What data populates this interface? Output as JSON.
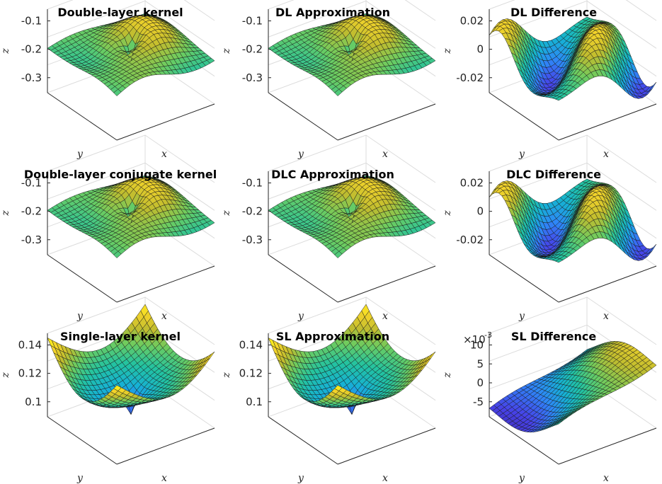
{
  "figure": {
    "colormap": [
      "#3e26a8",
      "#4742e8",
      "#2e87f7",
      "#16b1d4",
      "#23c3a0",
      "#6bcc61",
      "#bfbc2f",
      "#f5d42a",
      "#f9fb15"
    ],
    "edge_color": "#1a1a1a"
  },
  "chart_data": [
    {
      "type": "surface",
      "title": "Double-layer kernel",
      "xlabel": "x",
      "ylabel": "y",
      "zlabel": "z",
      "zticks": [
        "-0.1",
        "-0.2",
        "-0.3"
      ],
      "zlim": [
        -0.36,
        -0.04
      ],
      "shape": "double-layer"
    },
    {
      "type": "surface",
      "title": "DL Approximation",
      "xlabel": "x",
      "ylabel": "y",
      "zlabel": "z",
      "zticks": [
        "-0.1",
        "-0.2",
        "-0.3"
      ],
      "zlim": [
        -0.36,
        -0.04
      ],
      "shape": "double-layer"
    },
    {
      "type": "surface",
      "title": "DL Difference",
      "xlabel": "x",
      "ylabel": "y",
      "zlabel": "z",
      "zticks": [
        "0.02",
        "0",
        "-0.02"
      ],
      "zlim": [
        -0.025,
        0.025
      ],
      "shape": "difference"
    },
    {
      "type": "surface",
      "title": "Double-layer conjugate kernel",
      "xlabel": "x",
      "ylabel": "y",
      "zlabel": "z",
      "zticks": [
        "-0.1",
        "-0.2",
        "-0.3"
      ],
      "zlim": [
        -0.36,
        -0.04
      ],
      "shape": "double-layer"
    },
    {
      "type": "surface",
      "title": "DLC Approximation",
      "xlabel": "x",
      "ylabel": "y",
      "zlabel": "z",
      "zticks": [
        "-0.1",
        "-0.2",
        "-0.3"
      ],
      "zlim": [
        -0.36,
        -0.04
      ],
      "shape": "double-layer"
    },
    {
      "type": "surface",
      "title": "DLC Difference",
      "xlabel": "x",
      "ylabel": "y",
      "zlabel": "z",
      "zticks": [
        "0.02",
        "0",
        "-0.02"
      ],
      "zlim": [
        -0.025,
        0.025
      ],
      "shape": "difference"
    },
    {
      "type": "surface",
      "title": "Single-layer kernel",
      "xlabel": "x",
      "ylabel": "y",
      "zlabel": "z",
      "zticks": [
        "0.14",
        "0.12",
        "0.1"
      ],
      "zlim": [
        0.085,
        0.15
      ],
      "shape": "single-layer"
    },
    {
      "type": "surface",
      "title": "SL Approximation",
      "xlabel": "x",
      "ylabel": "y",
      "zlabel": "z",
      "zticks": [
        "0.14",
        "0.12",
        "0.1"
      ],
      "zlim": [
        0.085,
        0.15
      ],
      "shape": "single-layer"
    },
    {
      "type": "surface",
      "title": "SL Difference",
      "xlabel": "x",
      "ylabel": "y",
      "zlabel": "z",
      "zticks": [
        "10",
        "5",
        "0",
        "-5"
      ],
      "zlim": [
        -9,
        12
      ],
      "exponent_base": "×10",
      "exponent_power": "-3",
      "shape": "sl-difference"
    }
  ]
}
